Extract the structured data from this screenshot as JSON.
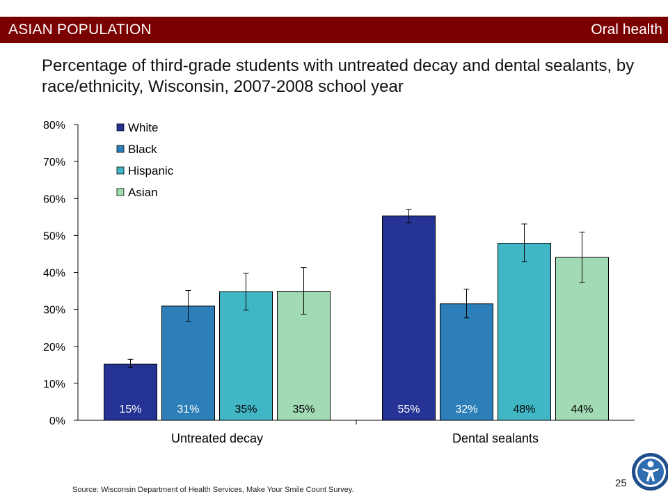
{
  "header": {
    "section_label": "ASIAN POPULATION",
    "topic_label": "Oral health"
  },
  "title": "Percentage of third-grade students with untreated decay and dental sealants, by race/ethnicity, Wisconsin, 2007-2008 school year",
  "source": "Source: Wisconsin Department of Health Services, Make Your Smile Count Survey.",
  "page_number": "25",
  "logo_icon": "health-person-logo-icon",
  "chart_data": {
    "type": "bar",
    "categories": [
      "Untreated decay",
      "Dental sealants"
    ],
    "series": [
      {
        "name": "White",
        "color": "#253494",
        "values": [
          15.2,
          55.3
        ],
        "labels": [
          "15%",
          "55%"
        ],
        "error_low": [
          14.2,
          53.5
        ],
        "error_high": [
          16.5,
          57.0
        ]
      },
      {
        "name": "Black",
        "color": "#2c7fb8",
        "values": [
          30.9,
          31.5
        ],
        "labels": [
          "31%",
          "32%"
        ],
        "error_low": [
          26.7,
          27.7
        ],
        "error_high": [
          35.1,
          35.5
        ]
      },
      {
        "name": "Hispanic",
        "color": "#41b6c4",
        "values": [
          34.8,
          47.9
        ],
        "labels": [
          "35%",
          "48%"
        ],
        "error_low": [
          29.8,
          42.9
        ],
        "error_high": [
          39.8,
          53.1
        ]
      },
      {
        "name": "Asian",
        "color": "#a1dab4",
        "values": [
          34.9,
          44.1
        ],
        "labels": [
          "35%",
          "44%"
        ],
        "error_low": [
          28.7,
          37.3
        ],
        "error_high": [
          41.3,
          50.9
        ]
      }
    ],
    "yticks": [
      "0%",
      "10%",
      "20%",
      "30%",
      "40%",
      "50%",
      "60%",
      "70%",
      "80%"
    ],
    "ylim": [
      0,
      80
    ],
    "legend_position": "top-left",
    "grid": false
  }
}
